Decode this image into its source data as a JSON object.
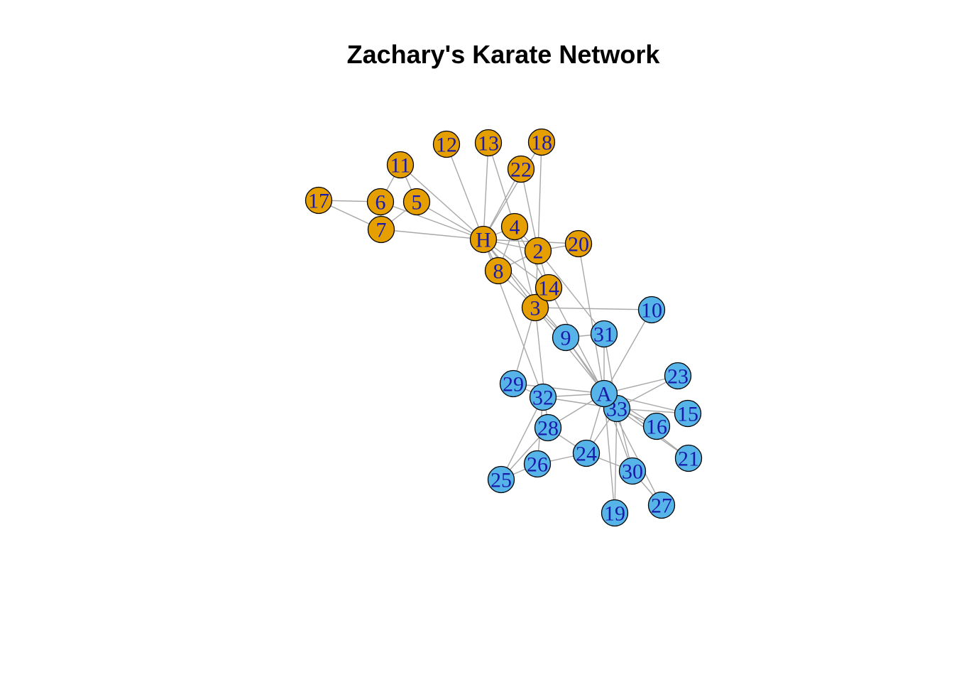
{
  "title": "Zachary's Karate Network",
  "colors": {
    "faction_h": "#E69F00",
    "faction_a": "#56B4E9",
    "edge": "#A8A8A8",
    "label": "#1A1AAA"
  },
  "nodes": [
    {
      "id": "H",
      "label": "H",
      "group": "faction_h"
    },
    {
      "id": "2",
      "label": "2",
      "group": "faction_h"
    },
    {
      "id": "3",
      "label": "3",
      "group": "faction_h"
    },
    {
      "id": "4",
      "label": "4",
      "group": "faction_h"
    },
    {
      "id": "5",
      "label": "5",
      "group": "faction_h"
    },
    {
      "id": "6",
      "label": "6",
      "group": "faction_h"
    },
    {
      "id": "7",
      "label": "7",
      "group": "faction_h"
    },
    {
      "id": "8",
      "label": "8",
      "group": "faction_h"
    },
    {
      "id": "11",
      "label": "11",
      "group": "faction_h"
    },
    {
      "id": "12",
      "label": "12",
      "group": "faction_h"
    },
    {
      "id": "13",
      "label": "13",
      "group": "faction_h"
    },
    {
      "id": "14",
      "label": "14",
      "group": "faction_h"
    },
    {
      "id": "17",
      "label": "17",
      "group": "faction_h"
    },
    {
      "id": "18",
      "label": "18",
      "group": "faction_h"
    },
    {
      "id": "20",
      "label": "20",
      "group": "faction_h"
    },
    {
      "id": "22",
      "label": "22",
      "group": "faction_h"
    },
    {
      "id": "9",
      "label": "9",
      "group": "faction_a"
    },
    {
      "id": "10",
      "label": "10",
      "group": "faction_a"
    },
    {
      "id": "15",
      "label": "15",
      "group": "faction_a"
    },
    {
      "id": "16",
      "label": "16",
      "group": "faction_a"
    },
    {
      "id": "19",
      "label": "19",
      "group": "faction_a"
    },
    {
      "id": "21",
      "label": "21",
      "group": "faction_a"
    },
    {
      "id": "23",
      "label": "23",
      "group": "faction_a"
    },
    {
      "id": "24",
      "label": "24",
      "group": "faction_a"
    },
    {
      "id": "25",
      "label": "25",
      "group": "faction_a"
    },
    {
      "id": "26",
      "label": "26",
      "group": "faction_a"
    },
    {
      "id": "27",
      "label": "27",
      "group": "faction_a"
    },
    {
      "id": "28",
      "label": "28",
      "group": "faction_a"
    },
    {
      "id": "29",
      "label": "29",
      "group": "faction_a"
    },
    {
      "id": "30",
      "label": "30",
      "group": "faction_a"
    },
    {
      "id": "31",
      "label": "31",
      "group": "faction_a"
    },
    {
      "id": "32",
      "label": "32",
      "group": "faction_a"
    },
    {
      "id": "33",
      "label": "33",
      "group": "faction_a"
    },
    {
      "id": "A",
      "label": "A",
      "group": "faction_a"
    }
  ],
  "edges": [
    [
      "H",
      "2"
    ],
    [
      "H",
      "3"
    ],
    [
      "H",
      "4"
    ],
    [
      "H",
      "5"
    ],
    [
      "H",
      "6"
    ],
    [
      "H",
      "7"
    ],
    [
      "H",
      "8"
    ],
    [
      "H",
      "9"
    ],
    [
      "H",
      "11"
    ],
    [
      "H",
      "12"
    ],
    [
      "H",
      "13"
    ],
    [
      "H",
      "14"
    ],
    [
      "H",
      "18"
    ],
    [
      "H",
      "20"
    ],
    [
      "H",
      "22"
    ],
    [
      "H",
      "32"
    ],
    [
      "2",
      "3"
    ],
    [
      "2",
      "4"
    ],
    [
      "2",
      "8"
    ],
    [
      "2",
      "14"
    ],
    [
      "2",
      "18"
    ],
    [
      "2",
      "20"
    ],
    [
      "2",
      "22"
    ],
    [
      "2",
      "31"
    ],
    [
      "3",
      "4"
    ],
    [
      "3",
      "8"
    ],
    [
      "3",
      "9"
    ],
    [
      "3",
      "10"
    ],
    [
      "3",
      "14"
    ],
    [
      "3",
      "28"
    ],
    [
      "3",
      "29"
    ],
    [
      "3",
      "33"
    ],
    [
      "4",
      "8"
    ],
    [
      "4",
      "13"
    ],
    [
      "4",
      "14"
    ],
    [
      "5",
      "7"
    ],
    [
      "5",
      "11"
    ],
    [
      "6",
      "7"
    ],
    [
      "6",
      "11"
    ],
    [
      "6",
      "17"
    ],
    [
      "7",
      "17"
    ],
    [
      "9",
      "31"
    ],
    [
      "9",
      "33"
    ],
    [
      "9",
      "A"
    ],
    [
      "10",
      "A"
    ],
    [
      "14",
      "A"
    ],
    [
      "15",
      "33"
    ],
    [
      "15",
      "A"
    ],
    [
      "16",
      "33"
    ],
    [
      "16",
      "A"
    ],
    [
      "19",
      "33"
    ],
    [
      "19",
      "A"
    ],
    [
      "20",
      "A"
    ],
    [
      "21",
      "33"
    ],
    [
      "21",
      "A"
    ],
    [
      "23",
      "33"
    ],
    [
      "23",
      "A"
    ],
    [
      "24",
      "26"
    ],
    [
      "24",
      "28"
    ],
    [
      "24",
      "30"
    ],
    [
      "24",
      "33"
    ],
    [
      "24",
      "A"
    ],
    [
      "25",
      "26"
    ],
    [
      "25",
      "28"
    ],
    [
      "25",
      "32"
    ],
    [
      "26",
      "32"
    ],
    [
      "27",
      "30"
    ],
    [
      "27",
      "A"
    ],
    [
      "28",
      "A"
    ],
    [
      "29",
      "32"
    ],
    [
      "29",
      "A"
    ],
    [
      "30",
      "33"
    ],
    [
      "30",
      "A"
    ],
    [
      "31",
      "33"
    ],
    [
      "31",
      "A"
    ],
    [
      "32",
      "33"
    ],
    [
      "32",
      "A"
    ],
    [
      "33",
      "A"
    ]
  ]
}
